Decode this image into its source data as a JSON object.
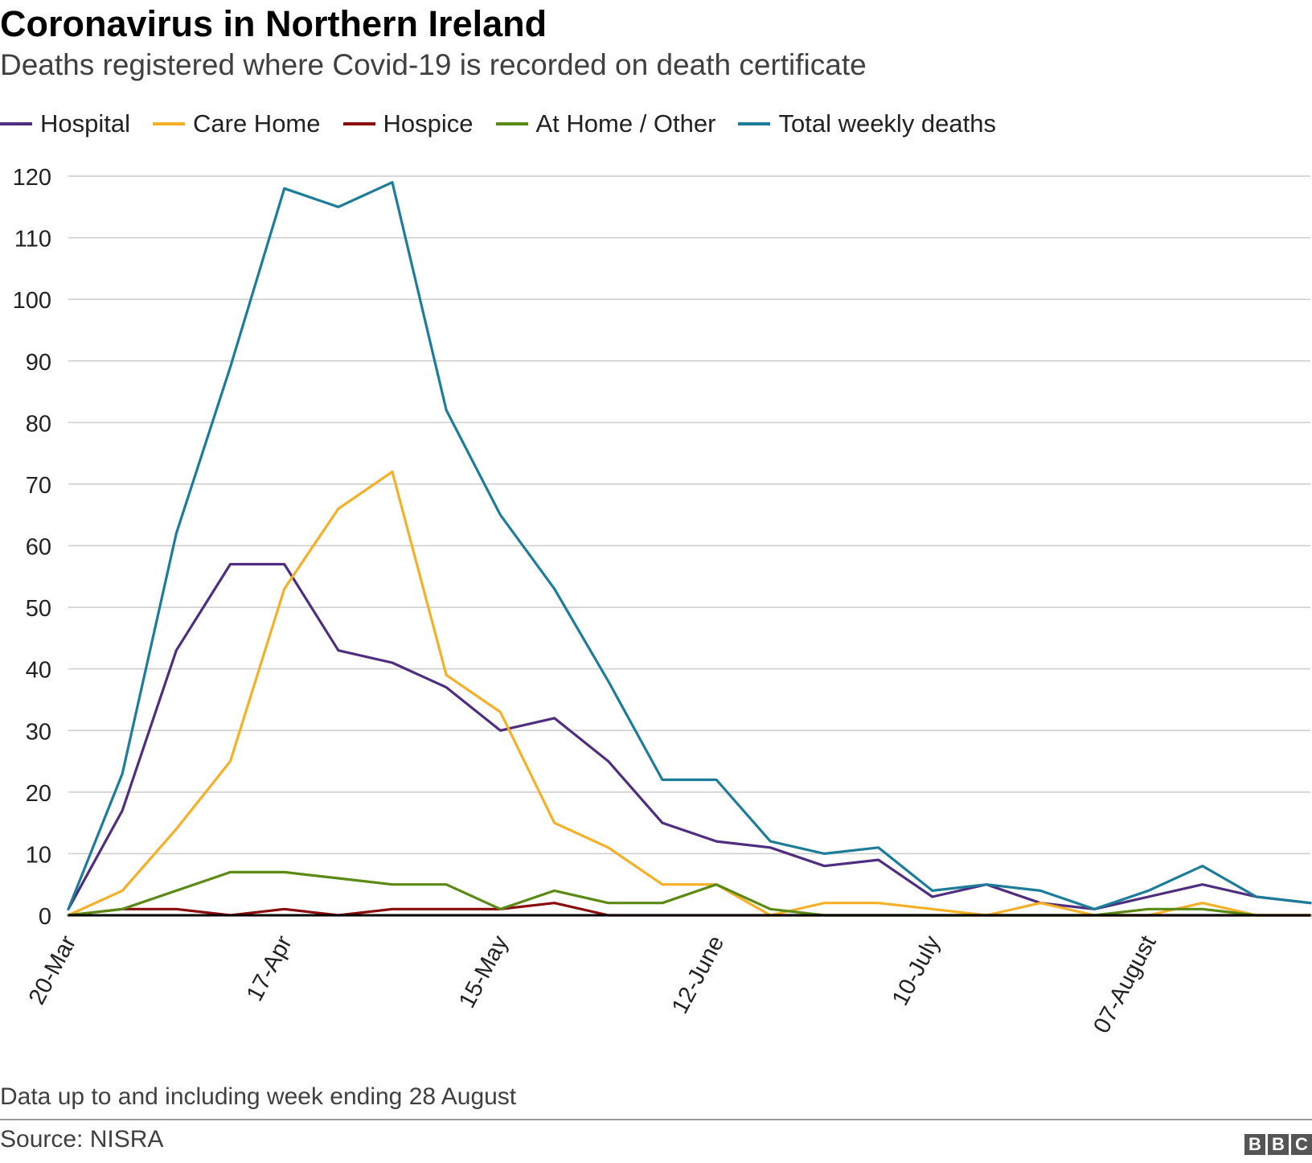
{
  "title": "Coronavirus in Northern Ireland",
  "subtitle": "Deaths registered where Covid-19 is recorded on death certificate",
  "note": "Data up to and including week ending 28 August",
  "source": "Source: NISRA",
  "logo_text": "BBC",
  "colors": {
    "hospital": "#4f2d7f",
    "care_home": "#f5b027",
    "hospice": "#8a0b0b",
    "at_home": "#5a8a14",
    "total": "#1b7d9a",
    "grid": "#cccccc",
    "axis": "#000000"
  },
  "chart_data": {
    "type": "line",
    "title": "Coronavirus in Northern Ireland",
    "xlabel": "",
    "ylabel": "",
    "ylim": [
      0,
      120
    ],
    "yticks": [
      0,
      10,
      20,
      30,
      40,
      50,
      60,
      70,
      80,
      90,
      100,
      110,
      120
    ],
    "grid": true,
    "legend_position": "top",
    "x_count": 24,
    "x_tick_labels": [
      {
        "index": 0,
        "label": "20-Mar"
      },
      {
        "index": 4,
        "label": "17-Apr"
      },
      {
        "index": 8,
        "label": "15-May"
      },
      {
        "index": 12,
        "label": "12-June"
      },
      {
        "index": 16,
        "label": "10-July"
      },
      {
        "index": 20,
        "label": "07-August"
      }
    ],
    "series": [
      {
        "key": "hospital",
        "name": "Hospital",
        "values": [
          1,
          17,
          43,
          57,
          57,
          43,
          41,
          37,
          30,
          32,
          25,
          15,
          12,
          11,
          8,
          9,
          3,
          5,
          2,
          1,
          3,
          5,
          3,
          2
        ]
      },
      {
        "key": "care_home",
        "name": "Care Home",
        "values": [
          0,
          4,
          14,
          25,
          53,
          66,
          72,
          39,
          33,
          15,
          11,
          5,
          5,
          0,
          2,
          2,
          1,
          0,
          2,
          0,
          0,
          2,
          0,
          0
        ]
      },
      {
        "key": "hospice",
        "name": "Hospice",
        "values": [
          0,
          1,
          1,
          0,
          1,
          0,
          1,
          1,
          1,
          2,
          0,
          0,
          0,
          0,
          0,
          0,
          0,
          0,
          0,
          0,
          0,
          0,
          0,
          0
        ]
      },
      {
        "key": "at_home",
        "name": "At Home / Other",
        "values": [
          0,
          1,
          4,
          7,
          7,
          6,
          5,
          5,
          1,
          4,
          2,
          2,
          5,
          1,
          0,
          0,
          0,
          0,
          0,
          0,
          1,
          1,
          0,
          0
        ]
      },
      {
        "key": "total",
        "name": "Total weekly deaths",
        "values": [
          1,
          23,
          62,
          89,
          118,
          115,
          119,
          82,
          65,
          53,
          38,
          22,
          22,
          12,
          10,
          11,
          4,
          5,
          4,
          1,
          4,
          8,
          3,
          2
        ]
      }
    ]
  }
}
